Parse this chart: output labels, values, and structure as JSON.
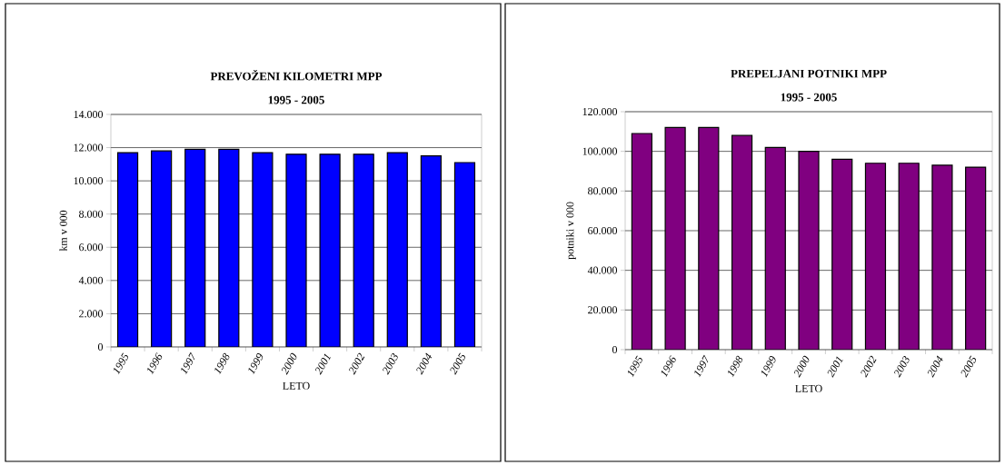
{
  "chart_data": [
    {
      "type": "bar",
      "title": "PREVOŽENI  KILOMETRI   MPP",
      "subtitle": "1995 - 2005",
      "xlabel": "LETO",
      "ylabel": "km v 000",
      "categories": [
        "1995",
        "1996",
        "1997",
        "1998",
        "1999",
        "2000",
        "2001",
        "2002",
        "2003",
        "2004",
        "2005"
      ],
      "values": [
        11700,
        11800,
        11900,
        11900,
        11700,
        11600,
        11600,
        11600,
        11700,
        11500,
        11100
      ],
      "color": "#0000ff",
      "ylim": [
        0,
        14000
      ],
      "yticks": [
        {
          "value": 0,
          "label": "0"
        },
        {
          "value": 2000,
          "label": "2.000"
        },
        {
          "value": 4000,
          "label": "4.000"
        },
        {
          "value": 6000,
          "label": "6.000"
        },
        {
          "value": 8000,
          "label": "8.000"
        },
        {
          "value": 10000,
          "label": "10.000"
        },
        {
          "value": 12000,
          "label": "12.000"
        },
        {
          "value": 14000,
          "label": "14.000"
        }
      ],
      "grid": "y"
    },
    {
      "type": "bar",
      "title": "PREPELJANI POTNIKI   MPP",
      "subtitle": "1995 - 2005",
      "xlabel": "LETO",
      "ylabel": "potniki v 000",
      "categories": [
        "1995",
        "1996",
        "1997",
        "1998",
        "1999",
        "2000",
        "2001",
        "2002",
        "2003",
        "2004",
        "2005"
      ],
      "values": [
        109000,
        112000,
        112000,
        108000,
        102000,
        100000,
        96000,
        94000,
        94000,
        93000,
        92000
      ],
      "color": "#800080",
      "ylim": [
        0,
        120000
      ],
      "yticks": [
        {
          "value": 0,
          "label": "0"
        },
        {
          "value": 20000,
          "label": "20.000"
        },
        {
          "value": 40000,
          "label": "40.000"
        },
        {
          "value": 60000,
          "label": "60.000"
        },
        {
          "value": 80000,
          "label": "80.000"
        },
        {
          "value": 100000,
          "label": "100.000"
        },
        {
          "value": 120000,
          "label": "120.000"
        }
      ],
      "grid": "y"
    }
  ]
}
